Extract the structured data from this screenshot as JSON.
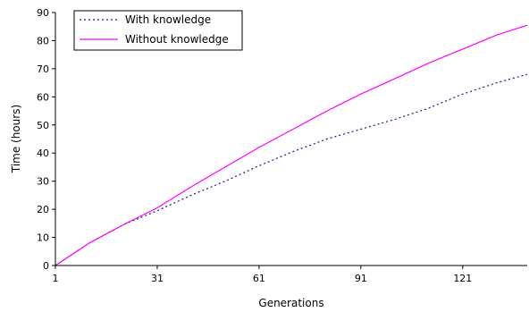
{
  "chart_data": {
    "type": "line",
    "title": "",
    "xlabel": "Generations",
    "ylabel": "Time (hours)",
    "xlim": [
      1,
      140
    ],
    "ylim": [
      0,
      90
    ],
    "x_ticks": [
      1,
      31,
      61,
      91,
      121
    ],
    "y_ticks": [
      0,
      10,
      20,
      30,
      40,
      50,
      60,
      70,
      80,
      90
    ],
    "grid": false,
    "legend_position": "top-left",
    "x": [
      1,
      11,
      21,
      31,
      41,
      51,
      61,
      71,
      81,
      91,
      101,
      111,
      121,
      131,
      140
    ],
    "series": [
      {
        "name": "With knowledge",
        "color": "#1a1a8c",
        "style": "dotted",
        "values": [
          0,
          8,
          14.5,
          19.5,
          25,
          30,
          35.5,
          40.5,
          45,
          48.5,
          52,
          56,
          61,
          65,
          68
        ]
      },
      {
        "name": "Without knowledge",
        "color": "#ff00ff",
        "style": "solid",
        "values": [
          0,
          8,
          14.5,
          20.5,
          28,
          35,
          42,
          48.5,
          55,
          61,
          66.5,
          72,
          77,
          82,
          85.5
        ]
      }
    ]
  }
}
